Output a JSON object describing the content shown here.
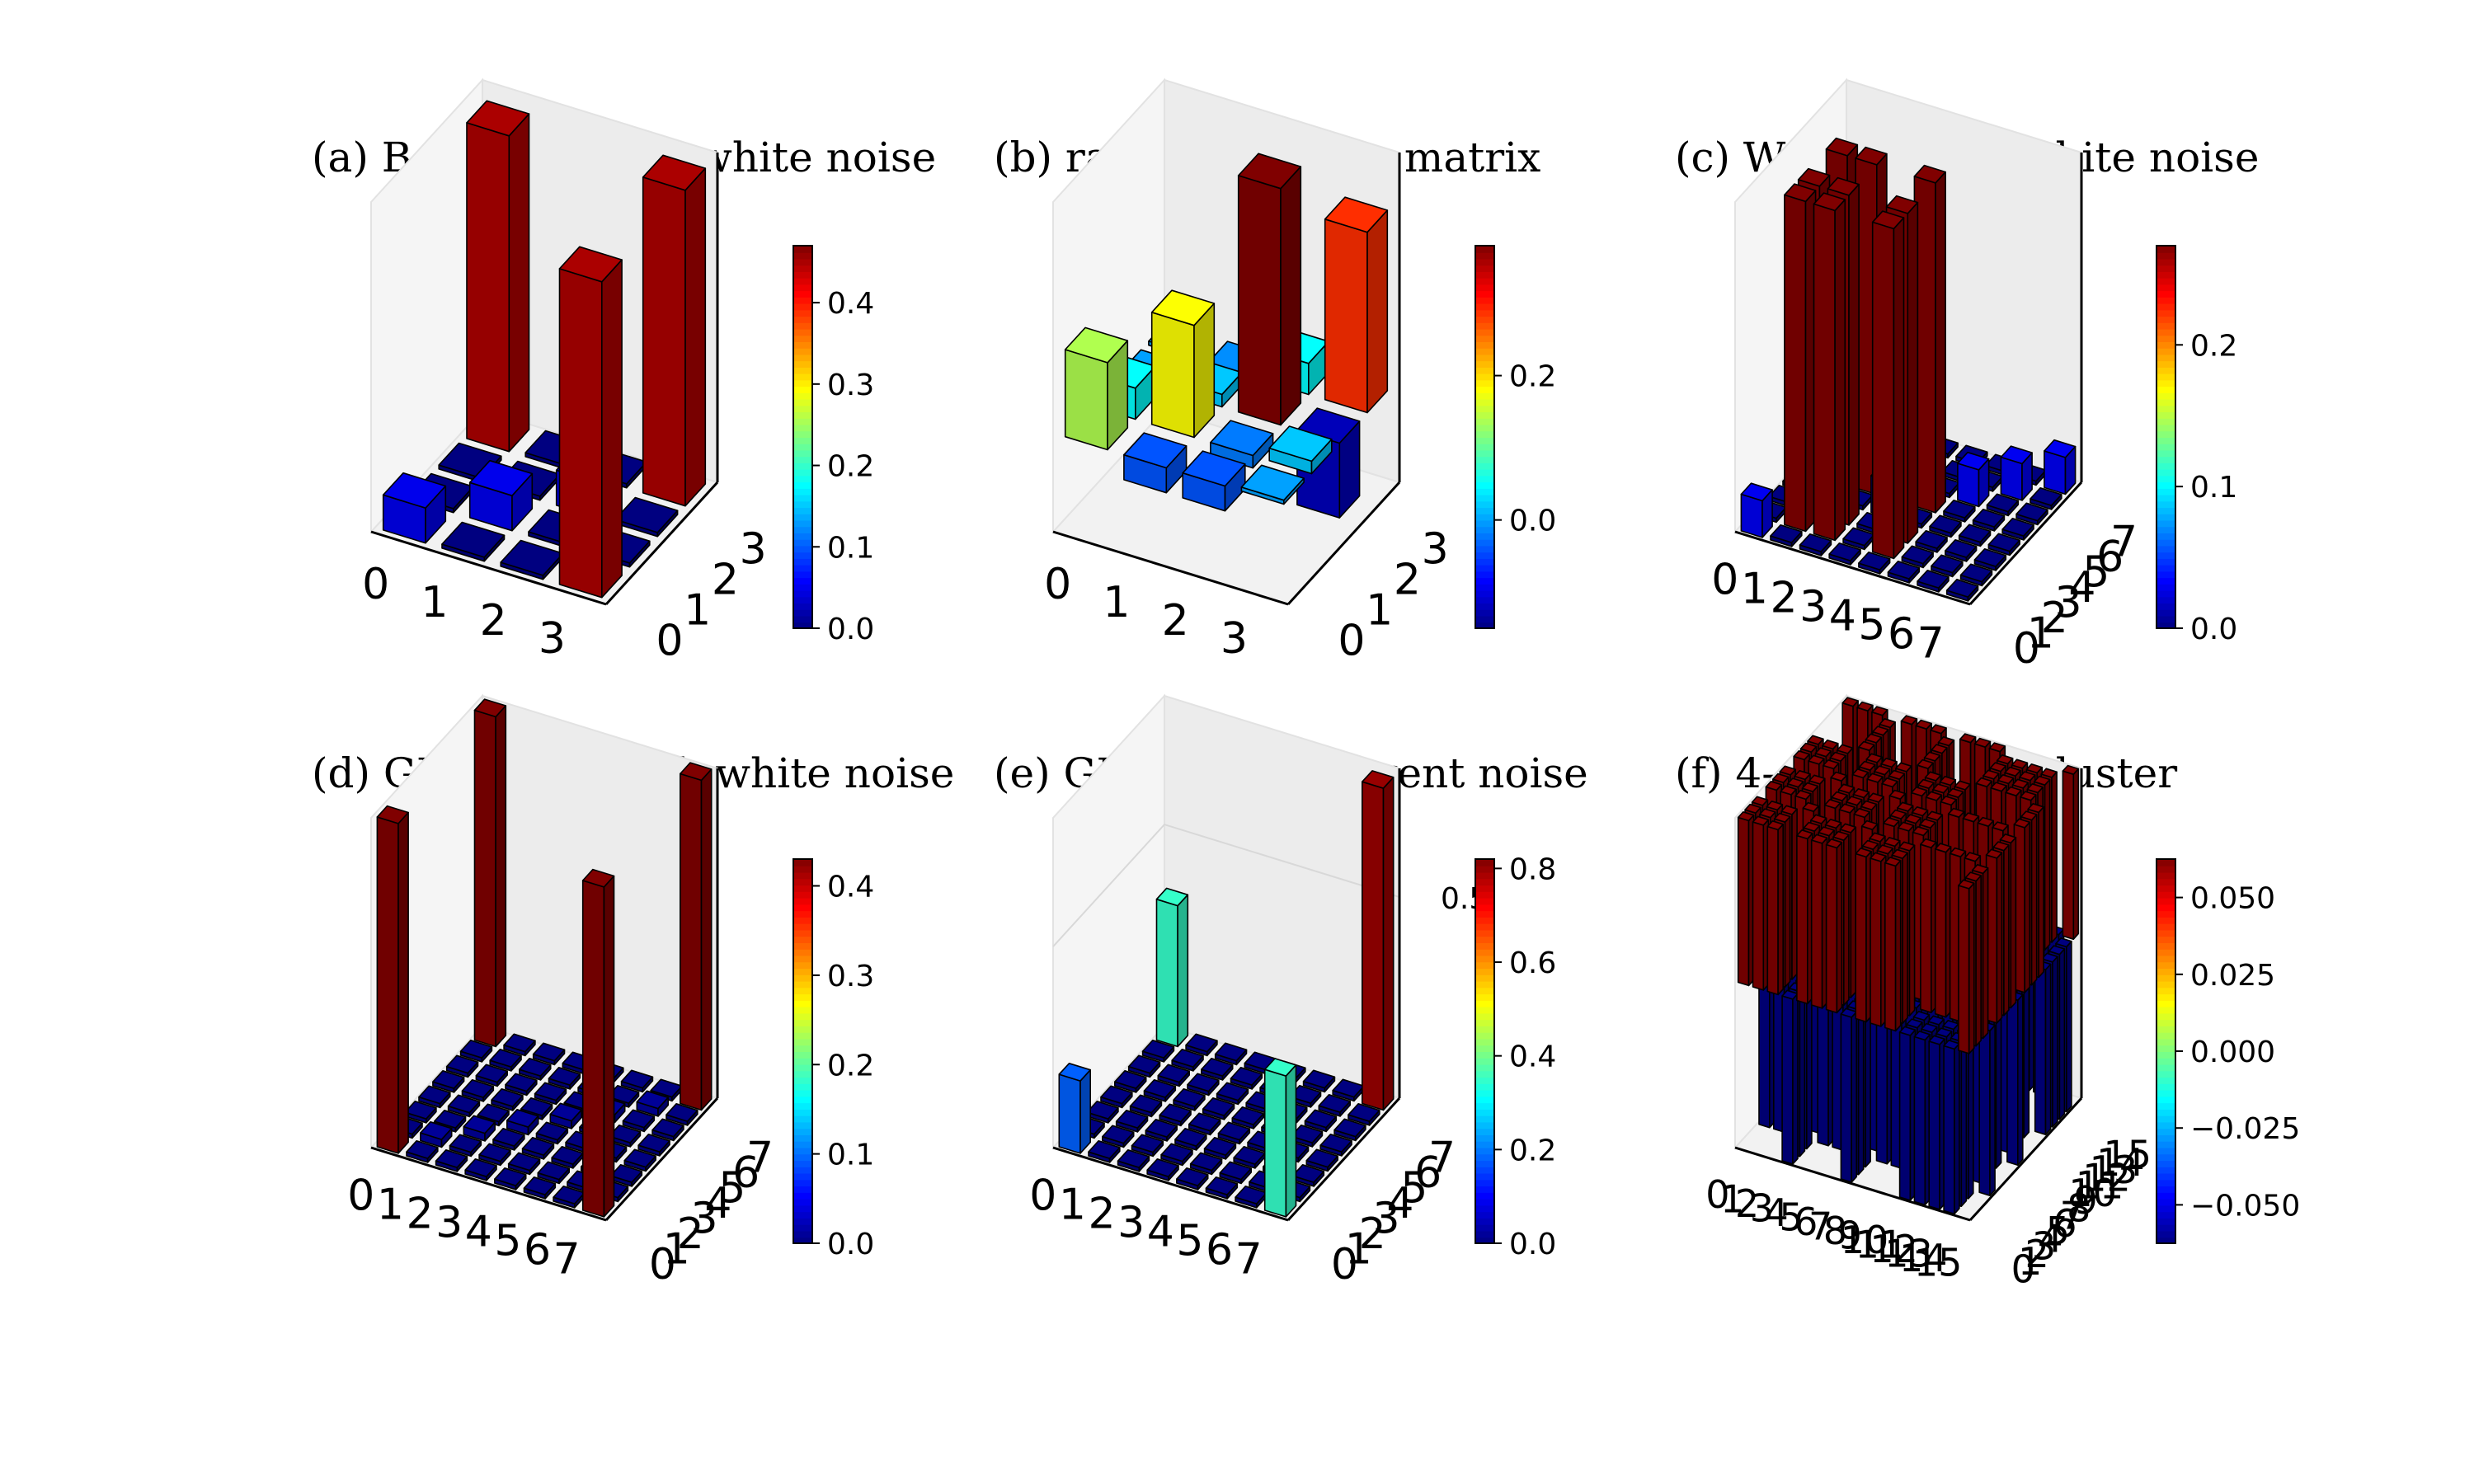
{
  "chart_data": [
    {
      "type": "bar3d",
      "title": "(a) Bell state with white noise",
      "n": 4,
      "x_ticks": [
        "0",
        "1",
        "2",
        "3"
      ],
      "y_ticks": [
        "0",
        "1",
        "2",
        "3"
      ],
      "zlim": [
        0,
        0.47
      ],
      "colorbar": {
        "range": [
          0,
          0.47
        ],
        "ticks": [
          "0.0",
          "0.1",
          "0.2",
          "0.3",
          "0.4"
        ],
        "tick_values": [
          0,
          0.1,
          0.2,
          0.3,
          0.4
        ]
      },
      "values": [
        [
          0.05,
          0.0,
          0.0,
          0.45
        ],
        [
          0.0,
          0.05,
          0.0,
          0.0
        ],
        [
          0.0,
          0.0,
          0.05,
          0.0
        ],
        [
          0.45,
          0.0,
          0.0,
          0.45
        ]
      ]
    },
    {
      "type": "bar3d",
      "title": "(b) random density matrix",
      "n": 4,
      "x_ticks": [
        "0",
        "1",
        "2",
        "3"
      ],
      "y_ticks": [
        "0",
        "1",
        "2",
        "3"
      ],
      "zlim": [
        -0.15,
        0.38
      ],
      "colorbar": {
        "range": [
          -0.15,
          0.38
        ],
        "ticks": [
          "0.0",
          "0.2"
        ],
        "tick_values": [
          0.0,
          0.2
        ]
      },
      "values": [
        [
          0.14,
          0.05,
          0.0,
          0.0
        ],
        [
          -0.04,
          0.18,
          0.02,
          -0.01
        ],
        [
          -0.04,
          -0.02,
          0.38,
          0.05
        ],
        [
          0.0,
          0.02,
          -0.12,
          0.29
        ]
      ]
    },
    {
      "type": "bar3d",
      "title": "(c) W state with white noise",
      "n": 8,
      "x_ticks": [
        "0",
        "1",
        "2",
        "3",
        "4",
        "5",
        "6",
        "7"
      ],
      "y_ticks": [
        "0",
        "1",
        "2",
        "3",
        "4",
        "5",
        "6",
        "7"
      ],
      "zlim": [
        0,
        0.27
      ],
      "colorbar": {
        "range": [
          0,
          0.27
        ],
        "ticks": [
          "0.0",
          "0.1",
          "0.2"
        ],
        "tick_values": [
          0.0,
          0.1,
          0.2
        ]
      },
      "values": [
        [
          0.03,
          0.0,
          0.0,
          0.0,
          0.0,
          0.0,
          0.0,
          0.0
        ],
        [
          0.0,
          0.27,
          0.27,
          0.0,
          0.27,
          0.0,
          0.0,
          0.0
        ],
        [
          0.0,
          0.27,
          0.27,
          0.0,
          0.27,
          0.0,
          0.0,
          0.0
        ],
        [
          0.0,
          0.0,
          0.0,
          0.03,
          0.0,
          0.0,
          0.0,
          0.0
        ],
        [
          0.0,
          0.27,
          0.27,
          0.0,
          0.27,
          0.0,
          0.0,
          0.0
        ],
        [
          0.0,
          0.0,
          0.0,
          0.0,
          0.0,
          0.03,
          0.0,
          0.0
        ],
        [
          0.0,
          0.0,
          0.0,
          0.0,
          0.0,
          0.0,
          0.03,
          0.0
        ],
        [
          0.0,
          0.0,
          0.0,
          0.0,
          0.0,
          0.0,
          0.0,
          0.03
        ]
      ]
    },
    {
      "type": "bar3d",
      "title": "(d) GHZ state with white noise",
      "n": 8,
      "x_ticks": [
        "0",
        "1",
        "2",
        "3",
        "4",
        "5",
        "6",
        "7"
      ],
      "y_ticks": [
        "0",
        "1",
        "2",
        "3",
        "4",
        "5",
        "6",
        "7"
      ],
      "zlim": [
        0,
        0.43
      ],
      "colorbar": {
        "range": [
          0,
          0.43
        ],
        "ticks": [
          "0.0",
          "0.1",
          "0.2",
          "0.3",
          "0.4"
        ],
        "tick_values": [
          0,
          0.1,
          0.2,
          0.3,
          0.4
        ]
      },
      "values": [
        [
          0.43,
          0.0,
          0.0,
          0.0,
          0.0,
          0.0,
          0.0,
          0.43
        ],
        [
          0.0,
          0.01,
          0.0,
          0.0,
          0.0,
          0.0,
          0.0,
          0.0
        ],
        [
          0.0,
          0.0,
          0.01,
          0.0,
          0.0,
          0.0,
          0.0,
          0.0
        ],
        [
          0.0,
          0.0,
          0.0,
          0.01,
          0.0,
          0.0,
          0.0,
          0.0
        ],
        [
          0.0,
          0.0,
          0.0,
          0.0,
          0.01,
          0.0,
          0.0,
          0.0
        ],
        [
          0.0,
          0.0,
          0.0,
          0.0,
          0.0,
          0.01,
          0.0,
          0.0
        ],
        [
          0.0,
          0.0,
          0.0,
          0.0,
          0.0,
          0.0,
          0.01,
          0.0
        ],
        [
          0.43,
          0.0,
          0.0,
          0.0,
          0.0,
          0.0,
          0.0,
          0.43
        ]
      ]
    },
    {
      "type": "bar3d",
      "title": "(e) GHZ with coherent noise",
      "n": 8,
      "x_ticks": [
        "0",
        "1",
        "2",
        "3",
        "4",
        "5",
        "6",
        "7"
      ],
      "y_ticks": [
        "0",
        "1",
        "2",
        "3",
        "4",
        "5",
        "6",
        "7"
      ],
      "z_ticks": [
        "0.5"
      ],
      "z_tick_values": [
        0.5
      ],
      "zlim": [
        0,
        0.82
      ],
      "colorbar": {
        "range": [
          0,
          0.82
        ],
        "ticks": [
          "0.0",
          "0.2",
          "0.4",
          "0.6",
          "0.8"
        ],
        "tick_values": [
          0,
          0.2,
          0.4,
          0.6,
          0.8
        ]
      },
      "values": [
        [
          0.18,
          0.0,
          0.0,
          0.0,
          0.0,
          0.0,
          0.0,
          0.35
        ],
        [
          0.0,
          0.0,
          0.0,
          0.0,
          0.0,
          0.0,
          0.0,
          0.0
        ],
        [
          0.0,
          0.0,
          0.0,
          0.0,
          0.0,
          0.0,
          0.0,
          0.0
        ],
        [
          0.0,
          0.0,
          0.0,
          0.0,
          0.0,
          0.0,
          0.0,
          0.0
        ],
        [
          0.0,
          0.0,
          0.0,
          0.0,
          0.0,
          0.0,
          0.0,
          0.0
        ],
        [
          0.0,
          0.0,
          0.0,
          0.0,
          0.0,
          0.0,
          0.0,
          0.0
        ],
        [
          0.0,
          0.0,
          0.0,
          0.0,
          0.0,
          0.0,
          0.0,
          0.0
        ],
        [
          0.35,
          0.0,
          0.0,
          0.0,
          0.0,
          0.0,
          0.0,
          0.8
        ]
      ]
    },
    {
      "type": "bar3d",
      "title": "(f) 4-qubit linear cluster",
      "n": 16,
      "x_ticks": [
        "0",
        "1",
        "2",
        "3",
        "4",
        "5",
        "6",
        "7",
        "8",
        "9",
        "10",
        "11",
        "12",
        "13",
        "14",
        "15"
      ],
      "y_ticks": [
        "0",
        "1",
        "2",
        "3",
        "4",
        "5",
        "6",
        "7",
        "8",
        "9",
        "10",
        "11",
        "12",
        "13",
        "14",
        "15"
      ],
      "zlim": [
        -0.0625,
        0.0625
      ],
      "colorbar": {
        "range": [
          -0.0625,
          0.0625
        ],
        "ticks": [
          "0.050",
          "0.025",
          "0.000",
          "−0.025",
          "−0.050"
        ],
        "tick_values": [
          0.05,
          0.025,
          0,
          -0.025,
          -0.05
        ]
      },
      "values": [
        [
          0.0625,
          0.0625,
          0.0625,
          -0.0625,
          0.0625,
          0.0625,
          0.0625,
          -0.0625,
          0.0625,
          0.0625,
          0.0625,
          -0.0625,
          -0.0625,
          -0.0625,
          -0.0625,
          0.0625
        ],
        [
          0.0625,
          0.0625,
          0.0625,
          -0.0625,
          0.0625,
          0.0625,
          0.0625,
          -0.0625,
          0.0625,
          0.0625,
          0.0625,
          -0.0625,
          -0.0625,
          -0.0625,
          -0.0625,
          0.0625
        ],
        [
          0.0625,
          0.0625,
          0.0625,
          -0.0625,
          0.0625,
          0.0625,
          0.0625,
          -0.0625,
          0.0625,
          0.0625,
          0.0625,
          -0.0625,
          -0.0625,
          -0.0625,
          -0.0625,
          0.0625
        ],
        [
          -0.0625,
          -0.0625,
          -0.0625,
          0.0625,
          -0.0625,
          -0.0625,
          -0.0625,
          0.0625,
          -0.0625,
          -0.0625,
          -0.0625,
          0.0625,
          0.0625,
          0.0625,
          0.0625,
          -0.0625
        ],
        [
          0.0625,
          0.0625,
          0.0625,
          -0.0625,
          0.0625,
          0.0625,
          0.0625,
          -0.0625,
          0.0625,
          0.0625,
          0.0625,
          -0.0625,
          -0.0625,
          -0.0625,
          -0.0625,
          0.0625
        ],
        [
          0.0625,
          0.0625,
          0.0625,
          -0.0625,
          0.0625,
          0.0625,
          0.0625,
          -0.0625,
          0.0625,
          0.0625,
          0.0625,
          -0.0625,
          -0.0625,
          -0.0625,
          -0.0625,
          0.0625
        ],
        [
          0.0625,
          0.0625,
          0.0625,
          -0.0625,
          0.0625,
          0.0625,
          0.0625,
          -0.0625,
          0.0625,
          0.0625,
          0.0625,
          -0.0625,
          -0.0625,
          -0.0625,
          -0.0625,
          0.0625
        ],
        [
          -0.0625,
          -0.0625,
          -0.0625,
          0.0625,
          -0.0625,
          -0.0625,
          -0.0625,
          0.0625,
          -0.0625,
          -0.0625,
          -0.0625,
          0.0625,
          0.0625,
          0.0625,
          0.0625,
          -0.0625
        ],
        [
          0.0625,
          0.0625,
          0.0625,
          -0.0625,
          0.0625,
          0.0625,
          0.0625,
          -0.0625,
          0.0625,
          0.0625,
          0.0625,
          -0.0625,
          -0.0625,
          -0.0625,
          -0.0625,
          0.0625
        ],
        [
          0.0625,
          0.0625,
          0.0625,
          -0.0625,
          0.0625,
          0.0625,
          0.0625,
          -0.0625,
          0.0625,
          0.0625,
          0.0625,
          -0.0625,
          -0.0625,
          -0.0625,
          -0.0625,
          0.0625
        ],
        [
          0.0625,
          0.0625,
          0.0625,
          -0.0625,
          0.0625,
          0.0625,
          0.0625,
          -0.0625,
          0.0625,
          0.0625,
          0.0625,
          -0.0625,
          -0.0625,
          -0.0625,
          -0.0625,
          0.0625
        ],
        [
          -0.0625,
          -0.0625,
          -0.0625,
          0.0625,
          -0.0625,
          -0.0625,
          -0.0625,
          0.0625,
          -0.0625,
          -0.0625,
          -0.0625,
          0.0625,
          0.0625,
          0.0625,
          0.0625,
          -0.0625
        ],
        [
          -0.0625,
          -0.0625,
          -0.0625,
          0.0625,
          -0.0625,
          -0.0625,
          -0.0625,
          0.0625,
          -0.0625,
          -0.0625,
          -0.0625,
          0.0625,
          0.0625,
          0.0625,
          0.0625,
          -0.0625
        ],
        [
          -0.0625,
          -0.0625,
          -0.0625,
          0.0625,
          -0.0625,
          -0.0625,
          -0.0625,
          0.0625,
          -0.0625,
          -0.0625,
          -0.0625,
          0.0625,
          0.0625,
          0.0625,
          0.0625,
          -0.0625
        ],
        [
          -0.0625,
          -0.0625,
          -0.0625,
          0.0625,
          -0.0625,
          -0.0625,
          -0.0625,
          0.0625,
          -0.0625,
          -0.0625,
          -0.0625,
          0.0625,
          0.0625,
          0.0625,
          0.0625,
          -0.0625
        ],
        [
          0.0625,
          0.0625,
          0.0625,
          -0.0625,
          0.0625,
          0.0625,
          0.0625,
          -0.0625,
          0.0625,
          0.0625,
          0.0625,
          -0.0625,
          -0.0625,
          -0.0625,
          -0.0625,
          0.0625
        ]
      ]
    }
  ],
  "colormap": "jet"
}
